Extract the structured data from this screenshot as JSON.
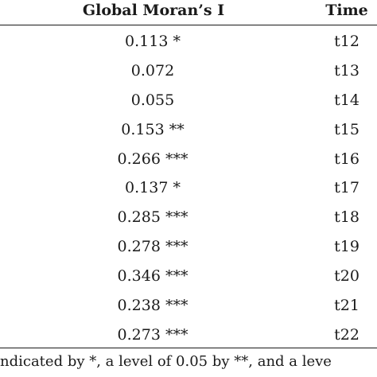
{
  "table": {
    "headers": {
      "moran": "Global Moran’s I",
      "time": "Time"
    },
    "rows": [
      {
        "value": "0.113 *",
        "time": "t12"
      },
      {
        "value": "0.072",
        "time": "t13"
      },
      {
        "value": "0.055",
        "time": "t14"
      },
      {
        "value": "0.153 **",
        "time": "t15"
      },
      {
        "value": "0.266 ***",
        "time": "t16"
      },
      {
        "value": "0.137 *",
        "time": "t17"
      },
      {
        "value": "0.285 ***",
        "time": "t18"
      },
      {
        "value": "0.278 ***",
        "time": "t19"
      },
      {
        "value": "0.346 ***",
        "time": "t20"
      },
      {
        "value": "0.238 ***",
        "time": "t21"
      },
      {
        "value": "0.273 ***",
        "time": "t22"
      }
    ]
  },
  "footnote": "ndicated by *, a level of 0.05 by **, and a leve"
}
